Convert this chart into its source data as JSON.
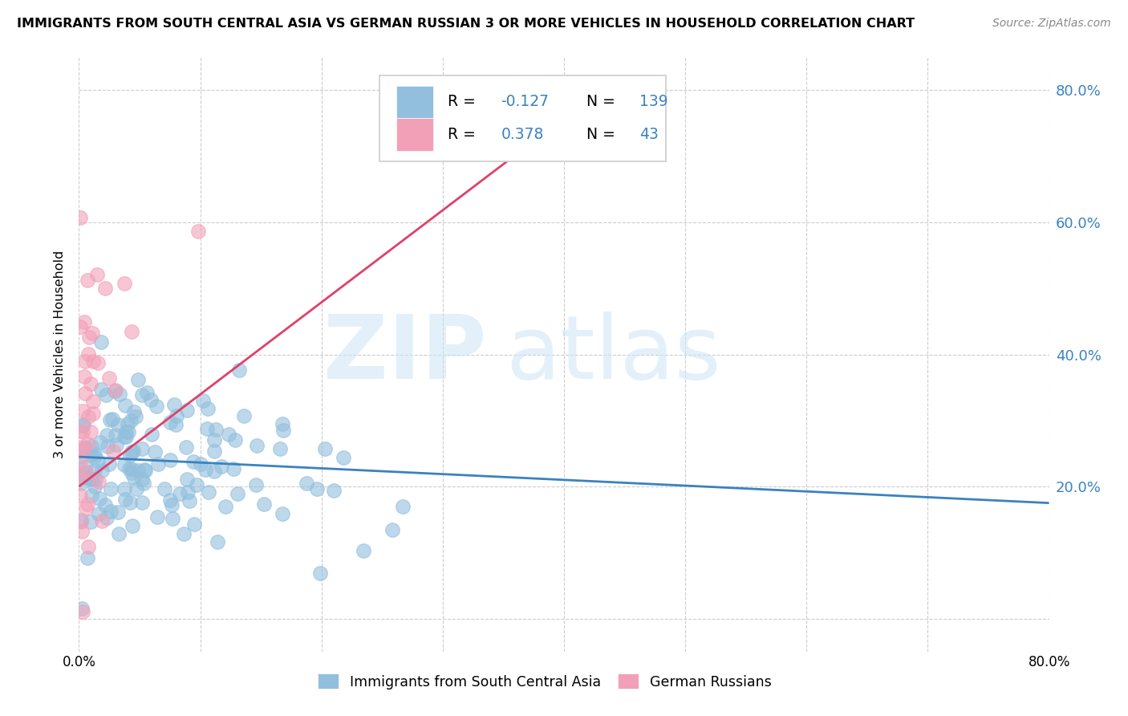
{
  "title": "IMMIGRANTS FROM SOUTH CENTRAL ASIA VS GERMAN RUSSIAN 3 OR MORE VEHICLES IN HOUSEHOLD CORRELATION CHART",
  "source": "Source: ZipAtlas.com",
  "ylabel": "3 or more Vehicles in Household",
  "x_min": 0.0,
  "x_max": 0.8,
  "y_min": -0.05,
  "y_max": 0.85,
  "blue_R": -0.127,
  "blue_N": 139,
  "pink_R": 0.378,
  "pink_N": 43,
  "blue_color": "#92bfdd",
  "pink_color": "#f2a0b8",
  "blue_line_color": "#3a82c0",
  "pink_line_color": "#e0406a",
  "legend_label_blue": "Immigrants from South Central Asia",
  "legend_label_pink": "German Russians",
  "blue_line_x0": 0.0,
  "blue_line_y0": 0.245,
  "blue_line_x1": 0.8,
  "blue_line_y1": 0.175,
  "pink_line_x0": 0.0,
  "pink_line_y0": 0.2,
  "pink_line_x1": 0.38,
  "pink_line_y1": 0.73
}
